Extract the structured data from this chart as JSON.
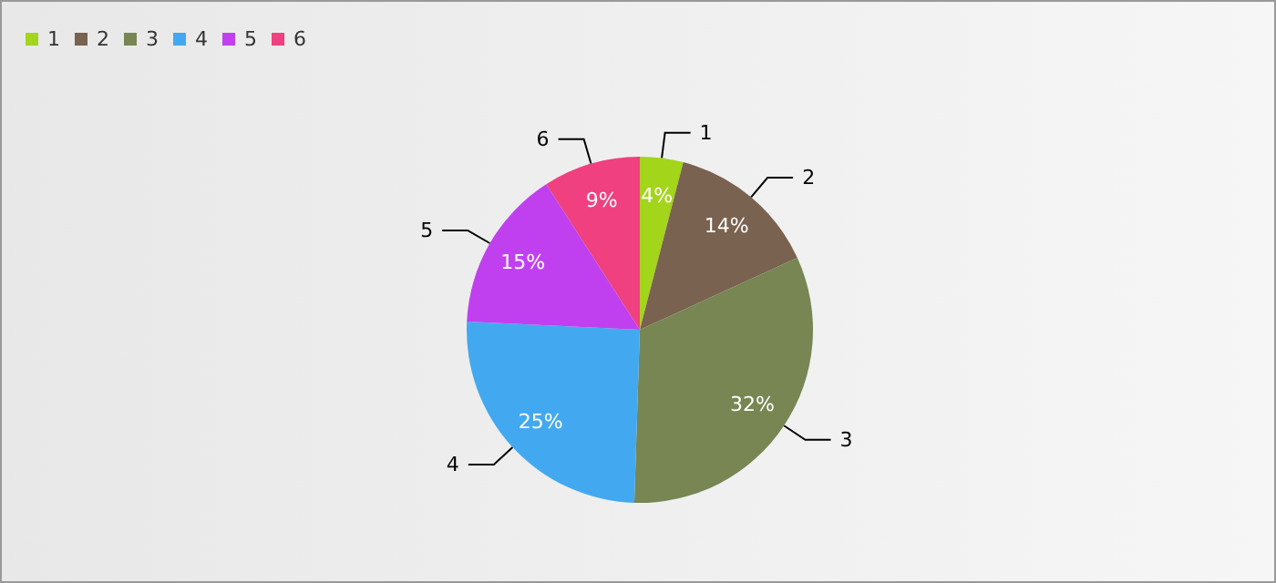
{
  "chart_data": {
    "type": "pie",
    "categories": [
      "1",
      "2",
      "3",
      "4",
      "5",
      "6"
    ],
    "values": [
      4,
      14,
      32,
      25,
      15,
      9
    ],
    "value_labels": [
      "4%",
      "14%",
      "32%",
      "25%",
      "15%",
      "9%"
    ],
    "colors": [
      "#a3d51b",
      "#7a6250",
      "#778652",
      "#42a9f0",
      "#c040f0",
      "#f0407f"
    ],
    "legend": "top left"
  }
}
